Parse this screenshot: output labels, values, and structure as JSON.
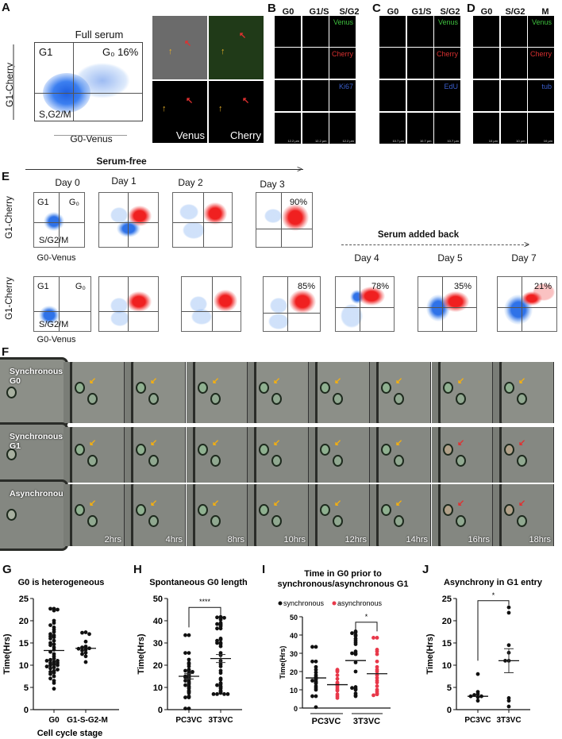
{
  "panels": {
    "A": {
      "label": "A",
      "title": "Full serum",
      "xlabel": "G0-Venus",
      "ylabel": "G1-Cherry",
      "q_g1": "G1",
      "q_g0": "G₀ 16%",
      "q_sg2m": "S,G2/M",
      "micro_labels": [
        "Venus",
        "Cherry"
      ]
    },
    "B": {
      "label": "B",
      "cols": [
        "G0",
        "G1/S",
        "S/G2"
      ],
      "channels": [
        "Venus",
        "Cherry",
        "Ki67"
      ],
      "scale": "12.2 µm"
    },
    "C": {
      "label": "C",
      "cols": [
        "G0",
        "G1/S",
        "S/G2"
      ],
      "channels": [
        "Venus",
        "Cherry",
        "EdU"
      ],
      "scale": "10.7 µm"
    },
    "D": {
      "label": "D",
      "cols": [
        "G0",
        "S/G2",
        "M"
      ],
      "channels": [
        "Venus",
        "Cherry",
        "tub"
      ],
      "scale": "10 µm"
    },
    "E": {
      "label": "E",
      "serum_free": "Serum-free",
      "serum_added": "Serum added back",
      "days_top": [
        "Day 0",
        "Day 1",
        "Day 2",
        "Day 3"
      ],
      "days_right": [
        "Day 4",
        "Day 5",
        "Day 7"
      ],
      "ylabel": "G1-Cherry",
      "xlabel": "G0-Venus",
      "q_g1": "G1",
      "q_g0": "G₀",
      "q_sg2m": "S/G2/M",
      "top_pct": [
        "",
        "",
        "",
        "90%"
      ],
      "bottom_pct": [
        "",
        "",
        "",
        "85%",
        "78%",
        "35%",
        "21%"
      ]
    },
    "F": {
      "label": "F",
      "rows": [
        "Synchronous G0",
        "Synchronous G1",
        "Asynchronous"
      ],
      "times": [
        "",
        "2hrs",
        "4hrs",
        "8hrs",
        "10hrs",
        "12hrs",
        "14hrs",
        "16hrs",
        "18hrs"
      ]
    },
    "G": {
      "label": "G"
    },
    "H": {
      "label": "H"
    },
    "I": {
      "label": "I"
    },
    "J": {
      "label": "J"
    }
  },
  "chart_data": [
    {
      "id": "G",
      "type": "scatter",
      "title": "G0 is heterogeneous",
      "xlabel": "Cell cycle stage",
      "ylabel": "Time(Hrs)",
      "ylim": [
        0,
        25
      ],
      "yticks": [
        0,
        5,
        10,
        15,
        20,
        25
      ],
      "categories": [
        "G0",
        "G1-S-G2-M"
      ],
      "series": [
        {
          "name": "G0",
          "mean": 13.3,
          "values": [
            22.7,
            22.7,
            22.5,
            22.3,
            20,
            19.5,
            19,
            18.5,
            18,
            17.5,
            17,
            16.7,
            16.5,
            16.3,
            16,
            15.5,
            15,
            14.7,
            14.5,
            14,
            13.5,
            13,
            12.5,
            12,
            11.5,
            11.2,
            11,
            11,
            10.8,
            10.5,
            10.5,
            10.2,
            10,
            10,
            9.7,
            9.5,
            9.3,
            9,
            8.7,
            8.5,
            8.3,
            8,
            7.5,
            7,
            6.5,
            6,
            4.7
          ]
        },
        {
          "name": "G1-S-G2-M",
          "mean": 13.8,
          "values": [
            17.4,
            17.3,
            17,
            15.3,
            14.2,
            14,
            13.8,
            13.7,
            13.5,
            13.3,
            12.8,
            12.5,
            12,
            10.7
          ]
        }
      ]
    },
    {
      "id": "H",
      "type": "scatter",
      "title": "Spontaneous G0 length",
      "ylabel": "Time(Hrs)",
      "ylim": [
        0,
        50
      ],
      "yticks": [
        0,
        10,
        20,
        30,
        40,
        50
      ],
      "categories": [
        "PC3VC",
        "3T3VC"
      ],
      "significance": "****",
      "series": [
        {
          "name": "PC3VC",
          "mean": 15,
          "sem": 1.2,
          "values": [
            33.5,
            33.5,
            25.5,
            25.5,
            22.5,
            21,
            20.5,
            19.5,
            18,
            17.5,
            17.5,
            17,
            16.5,
            16,
            15.5,
            15,
            14.5,
            14.5,
            14,
            13.5,
            13,
            12.5,
            12,
            11.5,
            11,
            10.5,
            10,
            9.5,
            8.5,
            8,
            7.5,
            6,
            5.5,
            5.5,
            0.5,
            0.5
          ]
        },
        {
          "name": "3T3VC",
          "mean": 23,
          "sem": 1.8,
          "values": [
            41.7,
            41.5,
            41.5,
            41.3,
            40.5,
            39,
            38.5,
            38.5,
            38,
            37.5,
            36.5,
            36.5,
            32,
            31.5,
            31,
            30,
            30,
            29.5,
            28.5,
            25.5,
            24.5,
            22,
            20.5,
            19.5,
            17.5,
            16.5,
            14,
            13.5,
            12,
            11.5,
            11,
            10.5,
            10,
            9.5,
            8.5,
            8,
            7.5,
            7,
            7,
            7,
            7
          ]
        }
      ]
    },
    {
      "id": "I",
      "type": "scatter",
      "title": "Time in G0 prior to synchronous/asynchronous G1",
      "ylabel": "Time(Hrs)",
      "ylim": [
        0,
        50
      ],
      "yticks": [
        0,
        10,
        20,
        30,
        40,
        50
      ],
      "categories": [
        "PC3VC",
        "3T3VC"
      ],
      "legend": [
        {
          "name": "synchronous",
          "color": "#111111"
        },
        {
          "name": "asynchronous",
          "color": "#e8384a"
        }
      ],
      "significance": "*",
      "series": [
        {
          "name": "PC3VC synchronous",
          "color": "#111111",
          "mean": 16.5,
          "values": [
            33.5,
            33.5,
            25.5,
            25.5,
            22.5,
            21,
            19.5,
            18,
            17,
            16.5,
            16,
            15.5,
            15,
            14.5,
            14,
            13.5,
            12,
            11,
            10,
            6.5,
            6.5,
            0.5
          ]
        },
        {
          "name": "PC3VC asynchronous",
          "color": "#e8384a",
          "mean": 12.8,
          "values": [
            21,
            20.5,
            20,
            18,
            16,
            14,
            13.5,
            12.5,
            12,
            11,
            10,
            9.5,
            7.5,
            6.5,
            5.5
          ]
        },
        {
          "name": "3T3VC synchronous",
          "color": "#111111",
          "mean": 26,
          "values": [
            42,
            41.5,
            41,
            40,
            39.5,
            38,
            37,
            36,
            35,
            31,
            30,
            30,
            29.5,
            25,
            20,
            11.5,
            11,
            10.5,
            10,
            8,
            7,
            6.5
          ]
        },
        {
          "name": "3T3VC asynchronous",
          "color": "#e8384a",
          "mean": 18.8,
          "values": [
            38.5,
            38.5,
            32,
            31,
            29.5,
            25.5,
            22.5,
            21,
            20,
            18,
            16.5,
            15,
            14,
            12,
            10,
            9,
            8,
            7.5,
            7
          ]
        }
      ]
    },
    {
      "id": "J",
      "type": "scatter",
      "title": "Asynchrony in G1 entry",
      "ylabel": "Time(Hrs)",
      "ylim": [
        0,
        25
      ],
      "yticks": [
        0,
        5,
        10,
        15,
        20,
        25
      ],
      "categories": [
        "PC3VC",
        "3T3VC"
      ],
      "significance": "*",
      "series": [
        {
          "name": "PC3VC",
          "mean": 3,
          "values": [
            8,
            4,
            3.5,
            3.3,
            3,
            3,
            2.8,
            2
          ]
        },
        {
          "name": "3T3VC",
          "mean": 11,
          "sem": 2.7,
          "values": [
            23,
            21.8,
            14.5,
            12.8,
            11,
            11,
            2.6,
            2,
            0.7
          ]
        }
      ]
    }
  ]
}
